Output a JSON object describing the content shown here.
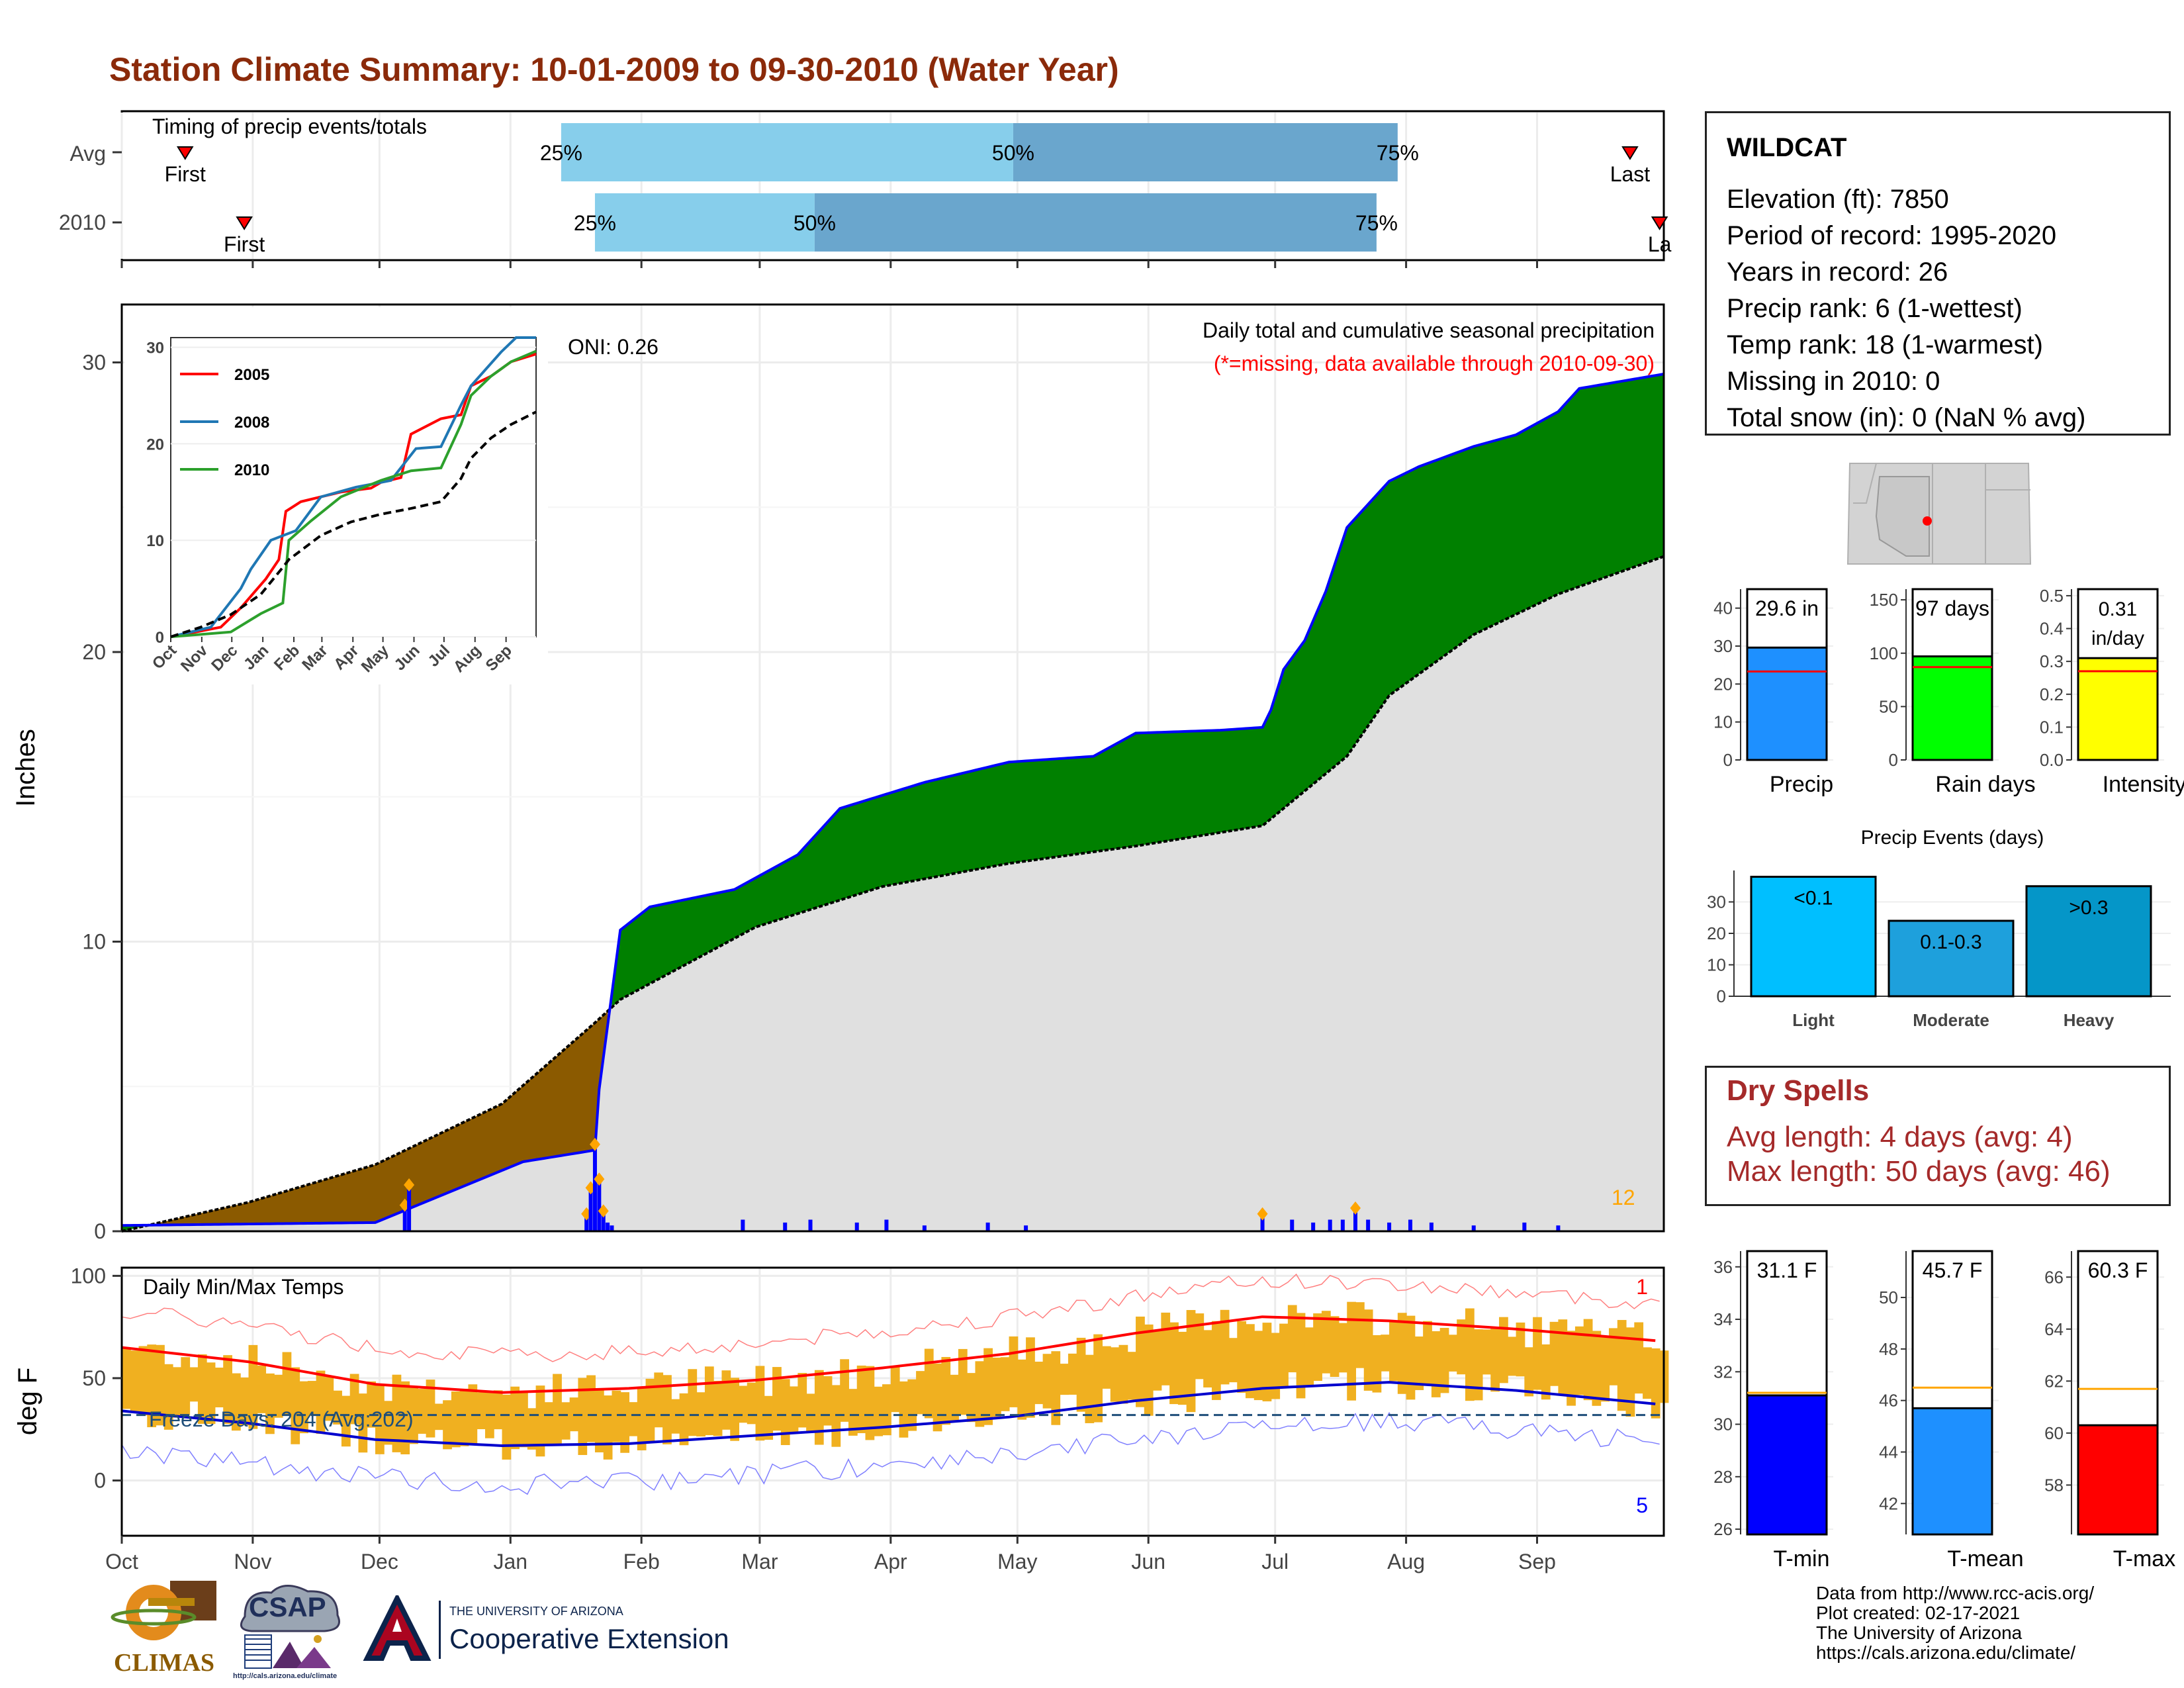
{
  "title": "Station Climate Summary: 10-01-2009 to 09-30-2010 (Water Year)",
  "timing_panel": {
    "label": "Timing of precip events/totals",
    "rows": [
      {
        "name": "Avg",
        "first": "2009-10-16",
        "p25": "2010-01-13",
        "p50": "2010-04-30",
        "p75": "2010-07-30",
        "last": "2010-09-23",
        "first_label": "First",
        "last_label": "Last",
        "pct_labels": [
          "25%",
          "50%",
          "75%"
        ]
      },
      {
        "name": "2010",
        "first": "2009-10-30",
        "p25": "2010-01-21",
        "p50": "2010-03-14",
        "p75": "2010-07-25",
        "last": "2010-09-30",
        "first_label": "First",
        "last_label": "La",
        "pct_labels": [
          "25%",
          "50%",
          "75%"
        ]
      }
    ],
    "colors": {
      "first_half": "#87ceeb",
      "second_half": "#6aa6cd",
      "marker": "#ff0000"
    }
  },
  "precip_panel": {
    "y_axis_label": "Inches",
    "y_ticks": [
      "0",
      "10",
      "20",
      "30"
    ],
    "header_line1": "Daily total and cumulative seasonal precipitation",
    "header_line2": "(*=missing, data available through 2010-09-30)",
    "oni_label": "ONI: 0.26",
    "count_label": "12",
    "colors": {
      "surplus": "#008000",
      "deficit": "#8b5a00",
      "avg_fill": "#e0e0e0",
      "cum_line": "#0000ff",
      "daily_bar": "#0000ff",
      "top_marker": "#ffa500"
    }
  },
  "inset": {
    "y_ticks": [
      "0",
      "10",
      "20",
      "30"
    ],
    "x_ticks": [
      "Oct",
      "Nov",
      "Dec",
      "Jan",
      "Feb",
      "Mar",
      "Apr",
      "May",
      "Jun",
      "Jul",
      "Aug",
      "Sep"
    ],
    "legend": [
      {
        "name": "2005",
        "color": "#ff0000"
      },
      {
        "name": "2008",
        "color": "#1f77b4"
      },
      {
        "name": "2010",
        "color": "#2ca02c"
      }
    ]
  },
  "temp_panel": {
    "y_axis_label": "deg F",
    "y_ticks": [
      "0",
      "50",
      "100"
    ],
    "label": "Daily Min/Max Temps",
    "freeze_label": "Freeze Days: 204 (Avg:202)",
    "record_high_count": "1",
    "record_low_count": "5",
    "colors": {
      "bar": "#f0b020",
      "max_line": "#ff0000",
      "min_line": "#0000cd",
      "freeze_line": "#1f4e79"
    }
  },
  "month_ticks": [
    "Oct",
    "Nov",
    "Dec",
    "Jan",
    "Feb",
    "Mar",
    "Apr",
    "May",
    "Jun",
    "Jul",
    "Aug",
    "Sep"
  ],
  "station": {
    "name": "WILDCAT",
    "lines": [
      "Elevation (ft): 7850",
      "Period of record: 1995-2020",
      "Years in record: 26",
      "Precip rank: 6 (1-wettest)",
      "Temp rank: 18 (1-warmest)",
      "Missing in 2010: 0",
      "Total snow (in): 0 (NaN % avg)"
    ]
  },
  "dry_spells": {
    "title": "Dry Spells",
    "avg_line": "Avg length: 4 days (avg: 4)",
    "max_line": "Max length: 50 days (avg: 46)"
  },
  "credits": [
    "Data from http://www.rcc-acis.org/",
    "Plot created: 02-17-2021",
    "The University of Arizona",
    "https://cals.arizona.edu/climate/"
  ],
  "logos": {
    "climas": "CLIMAS",
    "csap": "CSAP",
    "csap_url": "http://cals.arizona.edu/climate",
    "ua_small": "THE UNIVERSITY OF ARIZONA",
    "ua_big": "Cooperative Extension"
  },
  "chart_data": [
    {
      "type": "bar",
      "title": "",
      "categories": [
        "Precip"
      ],
      "values": [
        29.6
      ],
      "average": 23.3,
      "value_label": "29.6 in",
      "ylim": [
        0,
        45
      ],
      "y_ticks": [
        "0",
        "10",
        "20",
        "30",
        "40"
      ],
      "color": "#1e90ff"
    },
    {
      "type": "bar",
      "categories": [
        "Rain days"
      ],
      "values": [
        97
      ],
      "average": 87,
      "value_label": "97 days",
      "ylim": [
        0,
        160
      ],
      "y_ticks": [
        "0",
        "50",
        "100",
        "150"
      ],
      "color": "#00ff00"
    },
    {
      "type": "bar",
      "categories": [
        "Intensity"
      ],
      "values": [
        0.31
      ],
      "average": 0.27,
      "value_label": [
        "0.31",
        "in/day"
      ],
      "ylim": [
        0,
        0.52
      ],
      "y_ticks": [
        "0.0",
        "0.1",
        "0.2",
        "0.3",
        "0.4",
        "0.5"
      ],
      "color": "#ffff00"
    },
    {
      "type": "bar",
      "title": "Precip Events (days)",
      "categories": [
        "Light",
        "Moderate",
        "Heavy"
      ],
      "values": [
        38,
        24,
        35
      ],
      "bar_labels": [
        "<0.1",
        "0.1-0.3",
        ">0.3"
      ],
      "ylim": [
        0,
        40
      ],
      "y_ticks": [
        "0",
        "10",
        "20",
        "30"
      ],
      "colors": [
        "#00bfff",
        "#1ea0dc",
        "#0596c8"
      ]
    },
    {
      "type": "bar",
      "categories": [
        "T-min"
      ],
      "values": [
        31.1
      ],
      "average": 31.2,
      "value_label": "31.1 F",
      "ylim": [
        25.8,
        36.6
      ],
      "y_ticks": [
        "26",
        "28",
        "30",
        "32",
        "34",
        "36"
      ],
      "color": "#0000ff"
    },
    {
      "type": "bar",
      "categories": [
        "T-mean"
      ],
      "values": [
        45.7
      ],
      "average": 46.5,
      "value_label": "45.7 F",
      "ylim": [
        40.8,
        51.8
      ],
      "y_ticks": [
        "42",
        "44",
        "46",
        "48",
        "50"
      ],
      "color": "#1e90ff"
    },
    {
      "type": "bar",
      "categories": [
        "T-max"
      ],
      "values": [
        60.3
      ],
      "average": 61.7,
      "value_label": "60.3 F",
      "ylim": [
        56.1,
        67.0
      ],
      "y_ticks": [
        "58",
        "60",
        "62",
        "64",
        "66"
      ],
      "color": "#ff0000"
    },
    {
      "type": "line",
      "title": "",
      "x_unit": "day of water year",
      "series": [
        {
          "name": "2010 cumulative precip (in)",
          "x": [
            0,
            60,
            95,
            112,
            113,
            118,
            125,
            145,
            160,
            170,
            190,
            210,
            230,
            240,
            260,
            270,
            272,
            275,
            280,
            285,
            290,
            300,
            307,
            320,
            330,
            340,
            345,
            365
          ],
          "y": [
            0.2,
            0.3,
            2.4,
            2.8,
            4.9,
            10.4,
            11.2,
            11.8,
            13.0,
            14.6,
            15.5,
            16.2,
            16.4,
            17.2,
            17.3,
            17.4,
            18.0,
            19.4,
            20.4,
            22.1,
            24.3,
            25.9,
            26.4,
            27.1,
            27.5,
            28.3,
            29.1,
            29.6
          ]
        },
        {
          "name": "Average cumulative precip (in)",
          "x": [
            0,
            30,
            60,
            90,
            112,
            118,
            150,
            180,
            210,
            240,
            270,
            290,
            300,
            320,
            340,
            365
          ],
          "y": [
            0,
            1.0,
            2.3,
            4.4,
            7.2,
            8.0,
            10.5,
            11.9,
            12.7,
            13.3,
            14.0,
            16.4,
            18.5,
            20.6,
            22.0,
            23.3
          ]
        },
        {
          "name": "Daily precip events (in)",
          "x": [
            67,
            68,
            110,
            111,
            112,
            113,
            114,
            115,
            116,
            147,
            157,
            163,
            174,
            181,
            190,
            205,
            214,
            270,
            277,
            282,
            286,
            289,
            292,
            295,
            300,
            305,
            310,
            320,
            332,
            340
          ],
          "y": [
            0.9,
            1.6,
            0.6,
            1.5,
            3.0,
            1.8,
            0.7,
            0.3,
            0.2,
            0.4,
            0.3,
            0.4,
            0.3,
            0.4,
            0.2,
            0.3,
            0.2,
            0.6,
            0.4,
            0.3,
            0.4,
            0.4,
            0.8,
            0.4,
            0.3,
            0.4,
            0.3,
            0.2,
            0.3,
            0.2
          ]
        }
      ],
      "ylim": [
        0,
        32
      ]
    },
    {
      "type": "line",
      "series": [
        {
          "name": "Avg max (F)",
          "x": [
            0,
            30,
            60,
            90,
            120,
            150,
            180,
            210,
            240,
            270,
            300,
            330,
            365
          ],
          "y": [
            65,
            58,
            47,
            43,
            45,
            49,
            55,
            62,
            72,
            80,
            78,
            74,
            68
          ]
        },
        {
          "name": "Avg min (F)",
          "x": [
            0,
            30,
            60,
            90,
            120,
            150,
            180,
            210,
            240,
            270,
            300,
            330,
            365
          ],
          "y": [
            34,
            28,
            20,
            17,
            18,
            22,
            26,
            31,
            39,
            45,
            48,
            44,
            37
          ]
        }
      ],
      "ylim": [
        -27,
        104
      ]
    }
  ]
}
